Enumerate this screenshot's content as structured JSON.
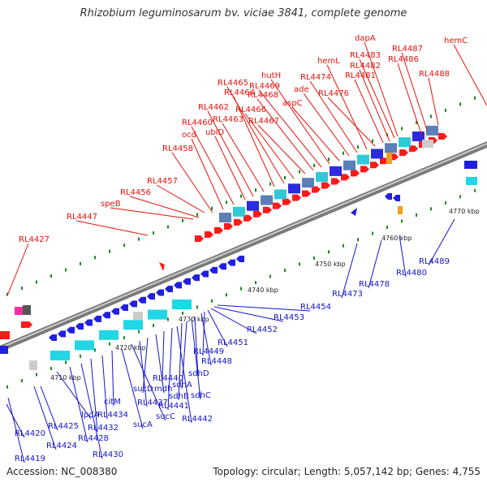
{
  "title": "Rhizobium leguminosarum bv. viciae 3841, complete genome",
  "accession": "Accession: NC_008380",
  "summary": "Topology: circular; Length: 5,057,142 bp; Genes: 4,755",
  "colors": {
    "forward_label": "#e8120b",
    "reverse_label": "#1414cc",
    "forward_feature": "#ff1a1a",
    "reverse_feature": "#2020e0",
    "backbone": "#8a8a8a",
    "tick": "#1a8a1a"
  },
  "ticks": [
    "4710 kbp",
    "4720 kbp",
    "4730 kbp",
    "4740 kbp",
    "4750 kbp",
    "4760 kbp",
    "4770 kbp"
  ],
  "forward_labels": [
    "RL4427",
    "RL4447",
    "speB",
    "RL4456",
    "RL4457",
    "RL4458",
    "ocd",
    "RL4460",
    "ubiD",
    "RL4462",
    "RL4463",
    "RL4464",
    "RL4465",
    "RL4466",
    "RL4467",
    "RL4468",
    "RL4469",
    "hutH",
    "aspC",
    "ade",
    "RL4474",
    "hemL",
    "RL4476",
    "RL4481",
    "RL4482",
    "RL4483",
    "dapA",
    "RL4486",
    "RL4487",
    "RL4488",
    "hemC"
  ],
  "reverse_labels": [
    "RL4419",
    "RL4420",
    "RL4424",
    "RL4425",
    "lpdA",
    "RL4428",
    "RL4430",
    "RL4432",
    "RL4434",
    "citM",
    "sucA",
    "sucC",
    "RL4437",
    "sucD",
    "mdh",
    "RL4440",
    "RL4441",
    "RL4442",
    "sdhB",
    "sdhA",
    "sdhC",
    "sdhD",
    "RL4448",
    "RL4449",
    "RL4451",
    "RL4452",
    "RL4453",
    "RL4454",
    "RL4473",
    "RL4478",
    "RL4480",
    "RL4489"
  ]
}
